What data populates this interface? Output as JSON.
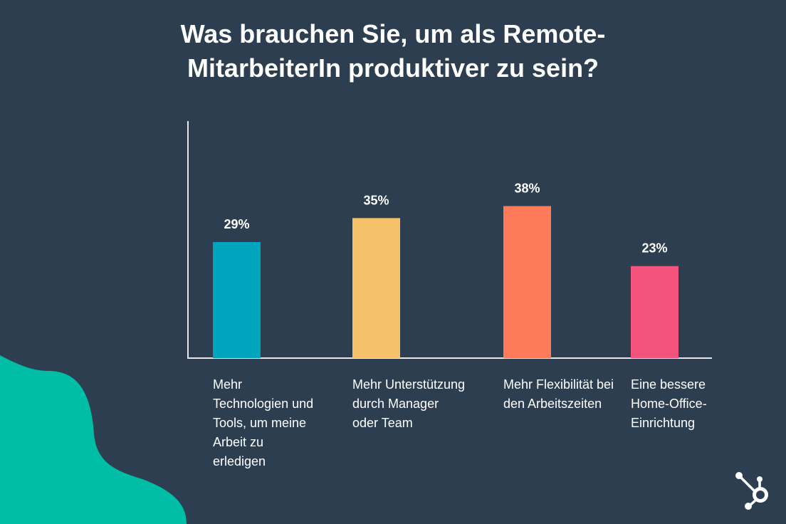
{
  "chart_data": {
    "type": "bar",
    "title": "Was brauchen Sie, um als Remote-MitarbeiterIn produktiver zu sein?",
    "title_lines": [
      "Was brauchen Sie, um als Remote-",
      "MitarbeiterIn produktiver zu sein?"
    ],
    "categories": [
      "Mehr Technologien und Tools, um meine Arbeit zu erledigen",
      "Mehr Unterstützung durch Manager oder Team",
      "Mehr Flexibilität bei den Arbeitszeiten",
      "Eine bessere Home-Office-Einrichtung"
    ],
    "values": [
      29,
      35,
      38,
      23
    ],
    "value_labels": [
      "29%",
      "35%",
      "38%",
      "23%"
    ],
    "colors": [
      "#00a4bd",
      "#f5c26b",
      "#ff7a59",
      "#f2547d"
    ],
    "xlabel": "",
    "ylabel": "",
    "ylim": [
      0,
      59
    ],
    "grid": false
  },
  "colors": {
    "background": "#2d3e50",
    "accent": "#00bda5",
    "text": "#ffffff"
  }
}
